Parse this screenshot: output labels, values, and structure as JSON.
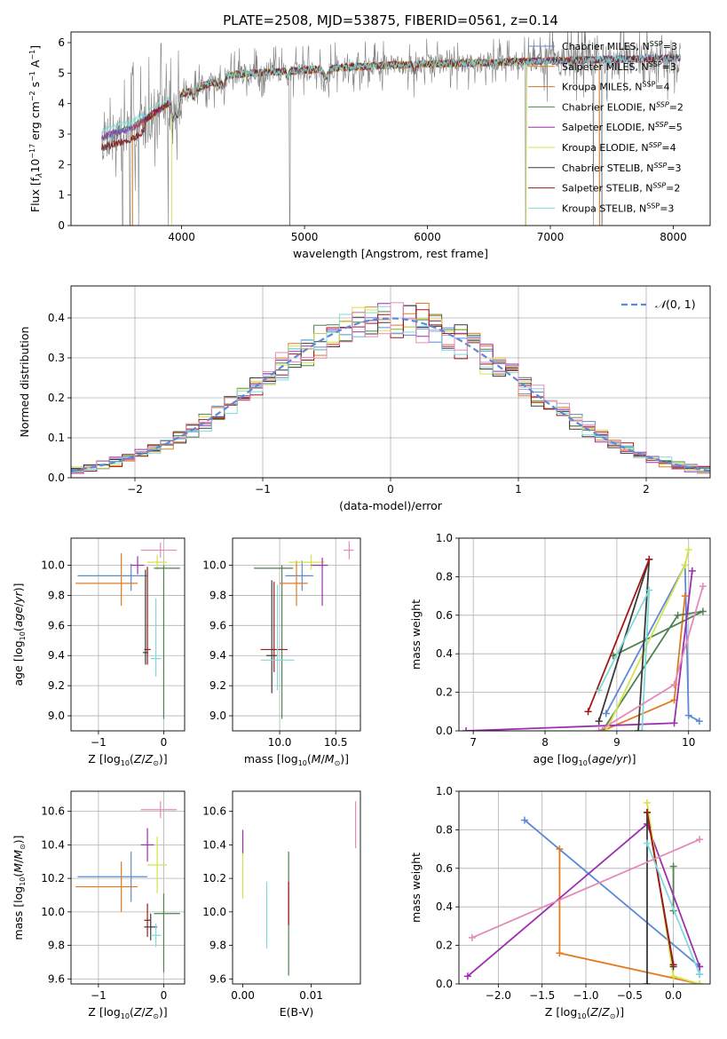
{
  "chart_data": [
    {
      "id": "spectrum",
      "type": "line",
      "title": "PLATE=2508, MJD=53875, FIBERID=0561, z=0.14",
      "xlabel": "wavelength [Angstrom, rest frame]",
      "ylabel_html": "Flux [f<tspan font-style='italic' font-size='9' dy='3'>λ</tspan><tspan dy='-3'>10</tspan><tspan font-size='8' dy='-5'>−17</tspan><tspan dy='5'> erg cm</tspan><tspan font-size='8' dy='-5'>−2</tspan><tspan dy='5'> s</tspan><tspan font-size='8' dy='-5'>−1</tspan><tspan dy='5'> A</tspan><tspan font-size='8' dy='-5'>−1</tspan><tspan dy='5'>]</tspan>",
      "xlim": [
        3100,
        8300
      ],
      "ylim": [
        0,
        6.35
      ],
      "xticks": [
        4000,
        5000,
        6000,
        7000,
        8000
      ],
      "yticks": [
        0,
        1,
        2,
        3,
        4,
        5,
        6
      ],
      "grid": false,
      "legend_position": "upper right",
      "data_range": [
        3350,
        8060
      ],
      "continuum": {
        "x": [
          3350,
          3600,
          4000,
          4400,
          4800,
          5200,
          5600,
          6000,
          6500,
          7000,
          7500,
          8060
        ],
        "y": [
          2.9,
          3.2,
          4.3,
          4.95,
          5.05,
          5.15,
          5.25,
          5.3,
          5.35,
          5.4,
          5.45,
          5.5
        ]
      },
      "series": [
        {
          "name_html": "Chabrier MILES, N<tspan font-size='8' dy='-4'>SSP</tspan><tspan dy='4'>=3</tspan>",
          "color": "#5b8ad6"
        },
        {
          "name_html": "Salpeter MILES, N<tspan font-size='8' dy='-4'>SSP</tspan><tspan dy='4'>=3</tspan>",
          "color": "#e07b20"
        },
        {
          "name_html": "Kroupa MILES, N<tspan font-size='8' dy='-4'>SSP</tspan><tspan dy='4'>=4</tspan>",
          "color": "#c8782a"
        },
        {
          "name_html": "Chabrier ELODIE, N<tspan font-size='8' font-style='italic' dy='-4'>SSP</tspan><tspan dy='4'>=2</tspan>",
          "color": "#4e8250"
        },
        {
          "name_html": "Salpeter ELODIE, N<tspan font-size='8' font-style='italic' dy='-4'>SSP</tspan><tspan dy='4'>=5</tspan>",
          "color": "#9b2fae"
        },
        {
          "name_html": "Kroupa ELODIE, N<tspan font-size='8' font-style='italic' dy='-4'>SSP</tspan><tspan dy='4'>=4</tspan>",
          "color": "#d4e34a"
        },
        {
          "name_html": "Chabrier STELIB, N<tspan font-size='8' font-style='italic' dy='-4'>SSP</tspan><tspan dy='4'>=3</tspan>",
          "color": "#3a3a3a"
        },
        {
          "name_html": "Salpeter STELIB, N<tspan font-size='8' font-style='italic' dy='-4'>SSP</tspan><tspan dy='4'>=2</tspan>",
          "color": "#a01818"
        },
        {
          "name_html": "Kroupa STELIB, N<tspan font-size='8' dy='-4'>SSP</tspan><tspan dy='4'>=3</tspan>",
          "color": "#7fdada"
        }
      ]
    },
    {
      "id": "residuals",
      "type": "histogram",
      "xlabel": "(data-model)/error",
      "ylabel": "Normed distribution",
      "xlim": [
        -2.5,
        2.5
      ],
      "ylim": [
        0,
        0.48
      ],
      "xticks": [
        -2,
        -1,
        0,
        1,
        2
      ],
      "yticks": [
        0,
        0.1,
        0.2,
        0.3,
        0.4
      ],
      "grid": true,
      "bin_width": 0.1,
      "legend_position": "upper right",
      "reference_curve": {
        "name_html": "<tspan font-style='italic'>𝒩</tspan>(0, 1)",
        "color": "#5b8ad6",
        "style": "dashed"
      },
      "histogram_colors": [
        "#5b8ad6",
        "#e07b20",
        "#4e8250",
        "#9b2fae",
        "#d4e34a",
        "#3a3a3a",
        "#a01818",
        "#7fdada",
        "#e58ab8"
      ]
    },
    {
      "id": "age_vs_Z",
      "type": "errorbar",
      "xlabel_html": "Z [log<tspan font-size='8' dy='3'>10</tspan><tspan dy='-3'>(</tspan><tspan font-style='italic'>Z</tspan>/<tspan font-style='italic'>Z</tspan><tspan font-size='8' dy='3'>⊙</tspan><tspan dy='-3'>)]</tspan>",
      "ylabel_html": "age  [log<tspan font-size='8' dy='3'>10</tspan><tspan dy='-3'>(</tspan><tspan font-style='italic'>age</tspan>/<tspan font-style='italic'>yr</tspan>)]",
      "xlim": [
        -1.42,
        0.32
      ],
      "ylim": [
        8.9,
        10.18
      ],
      "xticks": [
        -1,
        0
      ],
      "yticks": [
        9.0,
        9.2,
        9.4,
        9.6,
        9.8,
        10.0
      ],
      "grid": true,
      "points": [
        {
          "x": -0.5,
          "y": 9.93,
          "xerr": [
            0.82,
            0.25
          ],
          "yerr": [
            0.1,
            0.08
          ],
          "color": "#5b8ad6"
        },
        {
          "x": -0.65,
          "y": 9.88,
          "xerr": [
            0.7,
            0.25
          ],
          "yerr": [
            0.15,
            0.2
          ],
          "color": "#e07b20"
        },
        {
          "x": -0.25,
          "y": 9.44,
          "xerr": [
            0.05,
            0.05
          ],
          "yerr": [
            0.1,
            0.55
          ],
          "color": "#a01818"
        },
        {
          "x": -0.28,
          "y": 9.42,
          "xerr": [
            0.04,
            0.04
          ],
          "yerr": [
            0.08,
            0.55
          ],
          "color": "#3a3a3a"
        },
        {
          "x": -0.12,
          "y": 9.38,
          "xerr": [
            0.08,
            0.08
          ],
          "yerr": [
            0.12,
            0.4
          ],
          "color": "#7fdada"
        },
        {
          "x": -0.1,
          "y": 10.02,
          "xerr": [
            0.15,
            0.15
          ],
          "yerr": [
            0.05,
            0.05
          ],
          "color": "#d4e34a"
        },
        {
          "x": 0.0,
          "y": 9.98,
          "xerr": [
            0.15,
            0.25
          ],
          "yerr": [
            1.0,
            0.02
          ],
          "color": "#4e8250"
        },
        {
          "x": -0.05,
          "y": 10.1,
          "xerr": [
            0.3,
            0.25
          ],
          "yerr": [
            0.05,
            0.05
          ],
          "color": "#e58ab8"
        },
        {
          "x": -0.4,
          "y": 10.0,
          "xerr": [
            0.1,
            0.1
          ],
          "yerr": [
            0.06,
            0.06
          ],
          "color": "#9b2fae"
        }
      ]
    },
    {
      "id": "age_vs_mass",
      "type": "errorbar",
      "xlabel_html": "mass [log<tspan font-size='8' dy='3'>10</tspan><tspan dy='-3'>(</tspan><tspan font-style='italic'>M</tspan>/<tspan font-style='italic'>M</tspan><tspan font-size='8' dy='3'>⊙</tspan><tspan dy='-3'>)]</tspan>",
      "xlim": [
        9.58,
        10.72
      ],
      "ylim": [
        8.9,
        10.18
      ],
      "xticks": [
        10.0,
        10.5
      ],
      "yticks": [
        9.0,
        9.2,
        9.4,
        9.6,
        9.8,
        10.0
      ],
      "grid": true,
      "points": [
        {
          "x": 10.02,
          "y": 9.98,
          "xerr": [
            0.25,
            0.1
          ],
          "yerr": [
            1.0,
            0.02
          ],
          "color": "#4e8250"
        },
        {
          "x": 9.95,
          "y": 9.44,
          "xerr": [
            0.12,
            0.12
          ],
          "yerr": [
            0.15,
            0.45
          ],
          "color": "#a01818"
        },
        {
          "x": 9.93,
          "y": 9.4,
          "xerr": [
            0.05,
            0.05
          ],
          "yerr": [
            0.25,
            0.5
          ],
          "color": "#3a3a3a"
        },
        {
          "x": 9.98,
          "y": 9.37,
          "xerr": [
            0.15,
            0.15
          ],
          "yerr": [
            0.2,
            0.5
          ],
          "color": "#7fdada"
        },
        {
          "x": 10.2,
          "y": 9.93,
          "xerr": [
            0.15,
            0.1
          ],
          "yerr": [
            0.1,
            0.1
          ],
          "color": "#5b8ad6"
        },
        {
          "x": 10.15,
          "y": 9.88,
          "xerr": [
            0.15,
            0.1
          ],
          "yerr": [
            0.15,
            0.15
          ],
          "color": "#e07b20"
        },
        {
          "x": 10.28,
          "y": 10.02,
          "xerr": [
            0.2,
            0.12
          ],
          "yerr": [
            0.05,
            0.05
          ],
          "color": "#d4e34a"
        },
        {
          "x": 10.38,
          "y": 10.0,
          "xerr": [
            0.1,
            0.05
          ],
          "yerr": [
            0.27,
            0.05
          ],
          "color": "#9b2fae"
        },
        {
          "x": 10.62,
          "y": 10.1,
          "xerr": [
            0.05,
            0.04
          ],
          "yerr": [
            0.06,
            0.06
          ],
          "color": "#e58ab8"
        }
      ]
    },
    {
      "id": "weight_vs_age",
      "type": "line",
      "xlabel_html": "age  [log<tspan font-size='8' dy='3'>10</tspan><tspan dy='-3'>(</tspan><tspan font-style='italic'>age</tspan>/<tspan font-style='italic'>yr</tspan>)]",
      "ylabel": "mass weight",
      "xlim": [
        6.8,
        10.3
      ],
      "ylim": [
        0,
        1.0
      ],
      "xticks": [
        7,
        8,
        9,
        10
      ],
      "yticks": [
        0.0,
        0.2,
        0.4,
        0.6,
        0.8,
        1.0
      ],
      "grid": true,
      "series": [
        {
          "color": "#5b8ad6",
          "x": [
            8.85,
            9.95,
            10.0,
            10.15
          ],
          "y": [
            0.09,
            0.86,
            0.08,
            0.05
          ]
        },
        {
          "color": "#e07b20",
          "x": [
            8.8,
            9.8,
            9.95
          ],
          "y": [
            0.0,
            0.16,
            0.7
          ]
        },
        {
          "color": "#4e8250",
          "x": [
            8.95,
            10.2,
            9.85,
            8.8
          ],
          "y": [
            0.39,
            0.62,
            0.6,
            0.0
          ]
        },
        {
          "color": "#9b2fae",
          "x": [
            6.9,
            9.8,
            10.05
          ],
          "y": [
            0.0,
            0.04,
            0.83
          ]
        },
        {
          "color": "#d4e34a",
          "x": [
            8.85,
            9.95,
            10.0
          ],
          "y": [
            0.0,
            0.86,
            0.94
          ]
        },
        {
          "color": "#3a3a3a",
          "x": [
            9.3,
            9.45,
            8.75
          ],
          "y": [
            0.0,
            0.89,
            0.05
          ]
        },
        {
          "color": "#a01818",
          "x": [
            8.6,
            9.45
          ],
          "y": [
            0.1,
            0.89
          ]
        },
        {
          "color": "#7fdada",
          "x": [
            8.75,
            9.45,
            9.35
          ],
          "y": [
            0.21,
            0.73,
            0.0
          ]
        },
        {
          "color": "#e58ab8",
          "x": [
            8.75,
            9.8,
            10.2
          ],
          "y": [
            0.0,
            0.24,
            0.75
          ]
        }
      ]
    },
    {
      "id": "mass_vs_Z",
      "type": "errorbar",
      "xlabel_html": "Z [log<tspan font-size='8' dy='3'>10</tspan><tspan dy='-3'>(</tspan><tspan font-style='italic'>Z</tspan>/<tspan font-style='italic'>Z</tspan><tspan font-size='8' dy='3'>⊙</tspan><tspan dy='-3'>)]</tspan>",
      "ylabel_html": "mass [log<tspan font-size='8' dy='3'>10</tspan><tspan dy='-3'>(</tspan><tspan font-style='italic'>M</tspan>/<tspan font-style='italic'>M</tspan><tspan font-size='8' dy='3'>⊙</tspan><tspan dy='-3'>)]</tspan>",
      "xlim": [
        -1.42,
        0.32
      ],
      "ylim": [
        9.57,
        10.72
      ],
      "xticks": [
        -1,
        0
      ],
      "yticks": [
        9.6,
        9.8,
        10.0,
        10.2,
        10.4,
        10.6
      ],
      "grid": true,
      "points": [
        {
          "x": -0.5,
          "y": 10.21,
          "xerr": [
            0.82,
            0.25
          ],
          "yerr": [
            0.15,
            0.15
          ],
          "color": "#5b8ad6"
        },
        {
          "x": -0.65,
          "y": 10.15,
          "xerr": [
            0.7,
            0.25
          ],
          "yerr": [
            0.15,
            0.15
          ],
          "color": "#e07b20"
        },
        {
          "x": -0.25,
          "y": 10.4,
          "xerr": [
            0.1,
            0.1
          ],
          "yerr": [
            0.1,
            0.1
          ],
          "color": "#9b2fae"
        },
        {
          "x": -0.1,
          "y": 10.28,
          "xerr": [
            0.15,
            0.15
          ],
          "yerr": [
            0.17,
            0.17
          ],
          "color": "#d4e34a"
        },
        {
          "x": 0.0,
          "y": 9.99,
          "xerr": [
            0.15,
            0.25
          ],
          "yerr": [
            0.35,
            0.12
          ],
          "color": "#4e8250"
        },
        {
          "x": -0.25,
          "y": 9.95,
          "xerr": [
            0.05,
            0.05
          ],
          "yerr": [
            0.1,
            0.1
          ],
          "color": "#a01818"
        },
        {
          "x": -0.2,
          "y": 9.91,
          "xerr": [
            0.1,
            0.1
          ],
          "yerr": [
            0.08,
            0.08
          ],
          "color": "#3a3a3a"
        },
        {
          "x": -0.12,
          "y": 9.86,
          "xerr": [
            0.08,
            0.08
          ],
          "yerr": [
            0.07,
            0.07
          ],
          "color": "#7fdada"
        },
        {
          "x": -0.05,
          "y": 10.61,
          "xerr": [
            0.3,
            0.25
          ],
          "yerr": [
            0.05,
            0.05
          ],
          "color": "#e58ab8"
        }
      ]
    },
    {
      "id": "mass_vs_ebv",
      "type": "errorbar",
      "xlabel": "E(B-V)",
      "xlim": [
        -0.0015,
        0.0172
      ],
      "ylim": [
        9.57,
        10.72
      ],
      "xticks": [
        0.0,
        0.01
      ],
      "xtick_labels": [
        "0.00",
        "0.01"
      ],
      "yticks": [
        9.6,
        9.8,
        10.0,
        10.2,
        10.4,
        10.6
      ],
      "grid": false,
      "points": [
        {
          "x": 0.0,
          "y": 10.28,
          "xerr": [
            0,
            0
          ],
          "yerr": [
            0.2,
            0.17
          ],
          "color": "#d4e34a"
        },
        {
          "x": 0.0,
          "y": 10.4,
          "xerr": [
            0,
            0
          ],
          "yerr": [
            0.05,
            0.09
          ],
          "color": "#9b2fae"
        },
        {
          "x": 0.0035,
          "y": 9.98,
          "xerr": [
            0,
            0
          ],
          "yerr": [
            0.2,
            0.2
          ],
          "color": "#7fdada"
        },
        {
          "x": 0.0067,
          "y": 10.0,
          "xerr": [
            0,
            0
          ],
          "yerr": [
            0.38,
            0.36
          ],
          "color": "#4e8250"
        },
        {
          "x": 0.0067,
          "y": 10.05,
          "xerr": [
            0,
            0
          ],
          "yerr": [
            0.13,
            0.13
          ],
          "color": "#a01818"
        },
        {
          "x": 0.0165,
          "y": 10.53,
          "xerr": [
            0,
            0
          ],
          "yerr": [
            0.15,
            0.13
          ],
          "color": "#e58ab8"
        }
      ]
    },
    {
      "id": "weight_vs_Z",
      "type": "line",
      "xlabel_html": "Z [log<tspan font-size='8' dy='3'>10</tspan><tspan dy='-3'>(</tspan><tspan font-style='italic'>Z</tspan>/<tspan font-style='italic'>Z</tspan><tspan font-size='8' dy='3'>⊙</tspan><tspan dy='-3'>)]</tspan>",
      "ylabel": "mass weight",
      "xlim": [
        -2.45,
        0.42
      ],
      "ylim": [
        0,
        1.0
      ],
      "xticks": [
        -2.0,
        -1.5,
        -1.0,
        -0.5,
        0.0
      ],
      "xtick_labels": [
        "−2.0",
        "−1.5",
        "−1.0",
        "−0.5",
        "0.0"
      ],
      "yticks": [
        0.0,
        0.2,
        0.4,
        0.6,
        0.8,
        1.0
      ],
      "grid": true,
      "series": [
        {
          "color": "#5b8ad6",
          "x": [
            -1.7,
            0.3,
            0.3
          ],
          "y": [
            0.85,
            0.09,
            0.05
          ]
        },
        {
          "color": "#e07b20",
          "x": [
            -1.3,
            -1.3,
            0.3
          ],
          "y": [
            0.7,
            0.16,
            0.0
          ]
        },
        {
          "color": "#4e8250",
          "x": [
            0.0,
            0.0
          ],
          "y": [
            0.61,
            0.38
          ]
        },
        {
          "color": "#9b2fae",
          "x": [
            -2.35,
            -0.3,
            0.3
          ],
          "y": [
            0.04,
            0.83,
            0.09
          ]
        },
        {
          "color": "#d4e34a",
          "x": [
            -0.3,
            0.0,
            0.3
          ],
          "y": [
            0.94,
            0.04,
            0.0
          ]
        },
        {
          "color": "#3a3a3a",
          "x": [
            -0.3,
            -0.3,
            0.0
          ],
          "y": [
            0.0,
            0.89,
            0.09
          ]
        },
        {
          "color": "#a01818",
          "x": [
            -0.3,
            0.0
          ],
          "y": [
            0.89,
            0.1
          ]
        },
        {
          "color": "#7fdada",
          "x": [
            -0.3,
            0.3
          ],
          "y": [
            0.73,
            0.05
          ]
        },
        {
          "color": "#e58ab8",
          "x": [
            -2.3,
            0.3
          ],
          "y": [
            0.24,
            0.75
          ]
        }
      ]
    }
  ]
}
